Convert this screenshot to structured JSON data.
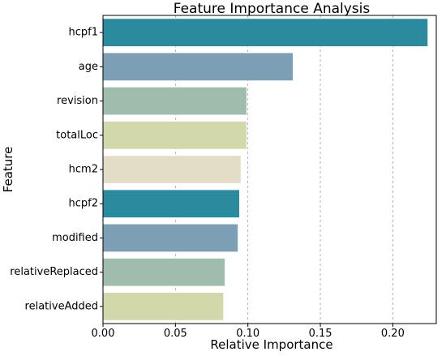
{
  "chart_data": {
    "type": "bar",
    "orientation": "horizontal",
    "title": "Feature Importance Analysis",
    "xlabel": "Relative Importance",
    "ylabel": "Feature",
    "categories": [
      "hcpf1",
      "age",
      "revision",
      "totalLoc",
      "hcm2",
      "hcpf2",
      "modified",
      "relativeReplaced",
      "relativeAdded"
    ],
    "values": [
      0.224,
      0.131,
      0.099,
      0.099,
      0.095,
      0.094,
      0.093,
      0.084,
      0.083
    ],
    "xlim": [
      0.0,
      0.23
    ],
    "xticks": [
      0.0,
      0.05,
      0.1,
      0.15,
      0.2
    ],
    "xtick_labels": [
      "0.00",
      "0.05",
      "0.10",
      "0.15",
      "0.20"
    ],
    "grid": "x",
    "grid_style": "dashed",
    "bar_colors": [
      "#2a8b9e",
      "#7d9fb5",
      "#9fbdad",
      "#d3d8ab",
      "#e3dcc6",
      "#2a8b9e",
      "#7d9fb5",
      "#9fbdad",
      "#d3d8ab"
    ]
  }
}
